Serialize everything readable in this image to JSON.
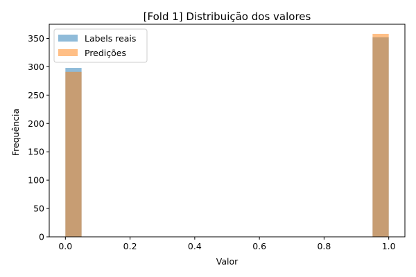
{
  "chart_data": {
    "type": "bar",
    "title": "[Fold 1] Distribuição dos valores",
    "xlabel": "Valor",
    "ylabel": "Frequência",
    "xlim": [
      -0.05,
      1.05
    ],
    "ylim": [
      0,
      375
    ],
    "xticks": [
      0.0,
      0.2,
      0.4,
      0.6,
      0.8,
      1.0
    ],
    "xtick_labels": [
      "0.0",
      "0.2",
      "0.4",
      "0.6",
      "0.8",
      "1.0"
    ],
    "yticks": [
      0,
      50,
      100,
      150,
      200,
      250,
      300,
      350
    ],
    "ytick_labels": [
      "0",
      "50",
      "100",
      "150",
      "200",
      "250",
      "300",
      "350"
    ],
    "bin_width": 0.05,
    "grid": false,
    "legend_position": "top-left",
    "series": [
      {
        "name": "Labels reais",
        "color": "#1f77b4",
        "opacity": 0.5,
        "bins": [
          {
            "x0": 0.0,
            "x1": 0.05,
            "value": 298
          },
          {
            "x0": 0.95,
            "x1": 1.0,
            "value": 352
          }
        ]
      },
      {
        "name": "Predições",
        "color": "#ff7f0e",
        "opacity": 0.5,
        "bins": [
          {
            "x0": 0.0,
            "x1": 0.05,
            "value": 291
          },
          {
            "x0": 0.95,
            "x1": 1.0,
            "value": 358
          }
        ]
      }
    ]
  }
}
